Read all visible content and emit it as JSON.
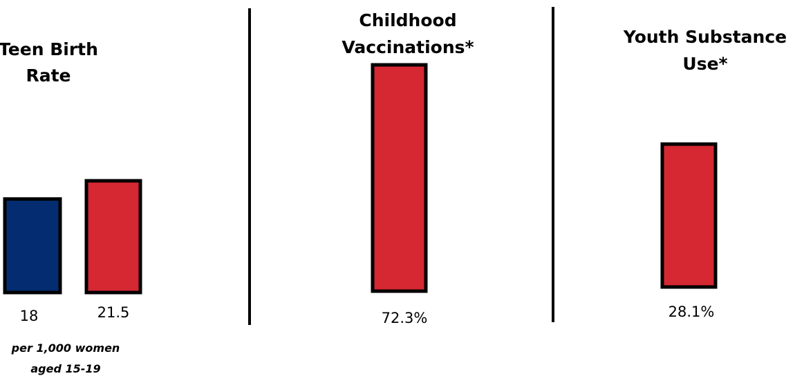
{
  "chart_data": [
    {
      "type": "bar",
      "title": "Teen Birth Rate",
      "title_lines": [
        "Teen Birth",
        "Rate"
      ],
      "categories": [
        "",
        ""
      ],
      "values": [
        18,
        21.5
      ],
      "value_labels": [
        "18",
        "21.5"
      ],
      "bar_colors": [
        "#032d70",
        "#d52832"
      ],
      "note": "per 1,000 women aged 15-19",
      "note_lines": [
        "per 1,000 women",
        "aged 15-19"
      ],
      "ylim": [
        0,
        30
      ]
    },
    {
      "type": "bar",
      "title": "Childhood Vaccinations*",
      "title_lines": [
        "Childhood",
        "Vaccinations*"
      ],
      "categories": [
        ""
      ],
      "values": [
        72.3
      ],
      "value_labels": [
        "72.3%"
      ],
      "bar_colors": [
        "#d52832"
      ],
      "ylim": [
        0,
        72.3
      ]
    },
    {
      "type": "bar",
      "title": "Youth Substance Use*",
      "title_lines": [
        "Youth Substance",
        "Use*"
      ],
      "categories": [
        ""
      ],
      "values": [
        28.1
      ],
      "value_labels": [
        "28.1%"
      ],
      "bar_colors": [
        "#d52832"
      ],
      "ylim": [
        0,
        44.5
      ]
    }
  ],
  "colors": {
    "blue": "#032d70",
    "red": "#d52832",
    "outline": "#000000",
    "divider": "#000000"
  }
}
